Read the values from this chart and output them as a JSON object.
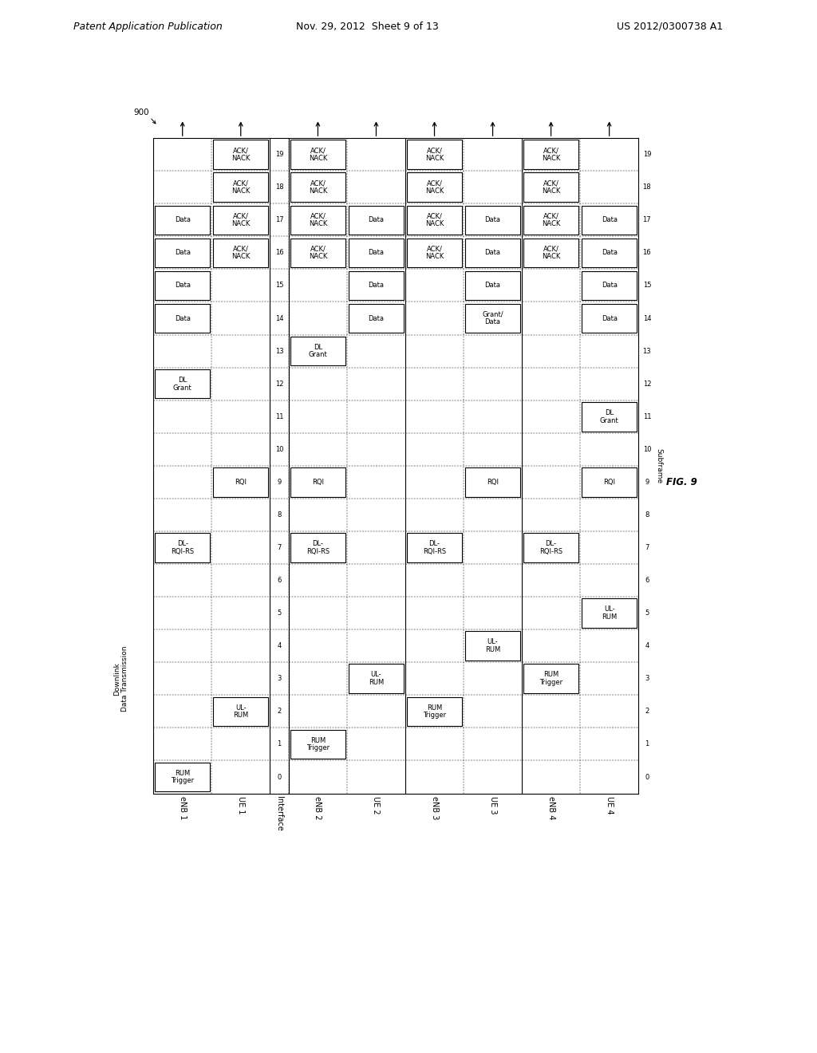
{
  "header_text": "Patent Application Publication",
  "header_date": "Nov. 29, 2012  Sheet 9 of 13",
  "header_patent": "US 2012/0300738 A1",
  "fig_label": "FIG. 9",
  "diagram_id": "900",
  "cells": [
    {
      "col": "UE 1",
      "sf": 19,
      "text": "ACK/\nNACK"
    },
    {
      "col": "UE 1",
      "sf": 18,
      "text": "ACK/\nNACK"
    },
    {
      "col": "eNB 1",
      "sf": 17,
      "text": "Data"
    },
    {
      "col": "UE 1",
      "sf": 17,
      "text": "ACK/\nNACK"
    },
    {
      "col": "eNB 1",
      "sf": 16,
      "text": "Data"
    },
    {
      "col": "UE 1",
      "sf": 16,
      "text": "ACK/\nNACK"
    },
    {
      "col": "eNB 1",
      "sf": 15,
      "text": "Data"
    },
    {
      "col": "eNB 1",
      "sf": 14,
      "text": "Data"
    },
    {
      "col": "eNB 1",
      "sf": 12,
      "text": "DL\nGrant"
    },
    {
      "col": "UE 1",
      "sf": 9,
      "text": "RQI"
    },
    {
      "col": "eNB 1",
      "sf": 7,
      "text": "DL-\nRQI-RS"
    },
    {
      "col": "UE 1",
      "sf": 2,
      "text": "UL-\nRUM"
    },
    {
      "col": "eNB 1",
      "sf": 0,
      "text": "RUM\nTrigger"
    },
    {
      "col": "eNB 2",
      "sf": 19,
      "text": "ACK/\nNACK"
    },
    {
      "col": "eNB 2",
      "sf": 18,
      "text": "ACK/\nNACK"
    },
    {
      "col": "eNB 2",
      "sf": 17,
      "text": "ACK/\nNACK"
    },
    {
      "col": "eNB 2",
      "sf": 16,
      "text": "ACK/\nNACK"
    },
    {
      "col": "UE 2",
      "sf": 17,
      "text": "Data"
    },
    {
      "col": "UE 2",
      "sf": 16,
      "text": "Data"
    },
    {
      "col": "UE 2",
      "sf": 15,
      "text": "Data"
    },
    {
      "col": "UE 2",
      "sf": 14,
      "text": "Data"
    },
    {
      "col": "eNB 2",
      "sf": 13,
      "text": "DL\nGrant"
    },
    {
      "col": "eNB 2",
      "sf": 9,
      "text": "RQI"
    },
    {
      "col": "eNB 2",
      "sf": 7,
      "text": "DL-\nRQI-RS"
    },
    {
      "col": "UE 2",
      "sf": 3,
      "text": "UL-\nRUM"
    },
    {
      "col": "eNB 2",
      "sf": 1,
      "text": "RUM\nTrigger"
    },
    {
      "col": "eNB 3",
      "sf": 19,
      "text": "ACK/\nNACK"
    },
    {
      "col": "eNB 3",
      "sf": 18,
      "text": "ACK/\nNACK"
    },
    {
      "col": "eNB 3",
      "sf": 17,
      "text": "ACK/\nNACK"
    },
    {
      "col": "eNB 3",
      "sf": 16,
      "text": "ACK/\nNACK"
    },
    {
      "col": "UE 3",
      "sf": 17,
      "text": "Data"
    },
    {
      "col": "UE 3",
      "sf": 16,
      "text": "Data"
    },
    {
      "col": "UE 3",
      "sf": 15,
      "text": "Data"
    },
    {
      "col": "UE 3",
      "sf": 14,
      "text": "Grant/\nData"
    },
    {
      "col": "UE 3",
      "sf": 9,
      "text": "RQI"
    },
    {
      "col": "eNB 3",
      "sf": 7,
      "text": "DL-\nRQI-RS"
    },
    {
      "col": "UE 3",
      "sf": 4,
      "text": "UL-\nRUM"
    },
    {
      "col": "eNB 3",
      "sf": 2,
      "text": "RUM\nTrigger"
    },
    {
      "col": "eNB 4",
      "sf": 19,
      "text": "ACK/\nNACK"
    },
    {
      "col": "eNB 4",
      "sf": 18,
      "text": "ACK/\nNACK"
    },
    {
      "col": "eNB 4",
      "sf": 17,
      "text": "ACK/\nNACK"
    },
    {
      "col": "eNB 4",
      "sf": 16,
      "text": "ACK/\nNACK"
    },
    {
      "col": "UE 4",
      "sf": 17,
      "text": "Data"
    },
    {
      "col": "UE 4",
      "sf": 16,
      "text": "Data"
    },
    {
      "col": "UE 4",
      "sf": 15,
      "text": "Data"
    },
    {
      "col": "UE 4",
      "sf": 14,
      "text": "Data"
    },
    {
      "col": "UE 4",
      "sf": 11,
      "text": "DL\nGrant"
    },
    {
      "col": "UE 4",
      "sf": 9,
      "text": "RQI"
    },
    {
      "col": "eNB 4",
      "sf": 7,
      "text": "DL-\nRQI-RS"
    },
    {
      "col": "UE 4",
      "sf": 5,
      "text": "UL-\nRUM"
    },
    {
      "col": "eNB 4",
      "sf": 3,
      "text": "RUM\nTrigger"
    }
  ]
}
